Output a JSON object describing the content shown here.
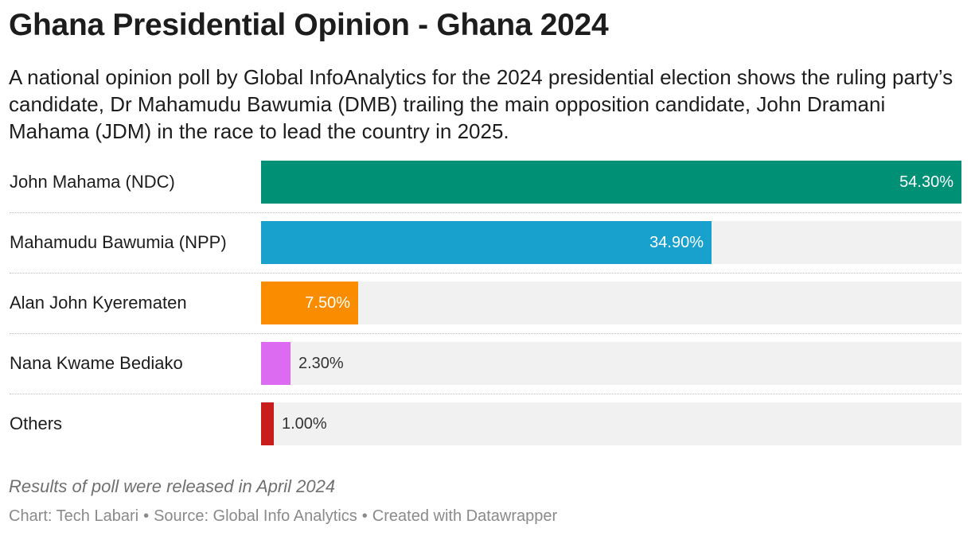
{
  "header": {
    "title": "Ghana Presidential Opinion - Ghana 2024",
    "subtitle": "A national opinion poll by Global InfoAnalytics for the 2024 presidential election shows the ruling party’s candidate, Dr Mahamudu Bawumia (DMB) trailing the main opposition candidate, John Dramani Mahama (JDM) in the race to lead the country in 2025."
  },
  "chart_data": {
    "type": "bar",
    "orientation": "horizontal",
    "title": "Ghana Presidential Opinion - Ghana 2024",
    "categories": [
      "John Mahama (NDC)",
      "Mahamudu Bawumia (NPP)",
      "Alan John Kyerematen",
      "Nana Kwame Bediako",
      "Others"
    ],
    "values": [
      54.3,
      34.9,
      7.5,
      2.3,
      1.0
    ],
    "value_labels": [
      "54.30%",
      "34.90%",
      "7.50%",
      "2.30%",
      "1.00%"
    ],
    "colors": [
      "#009075",
      "#18a1cd",
      "#fa8c00",
      "#dd6bf2",
      "#c71e1d"
    ],
    "xlim": [
      0,
      54.3
    ],
    "xlabel": "",
    "ylabel": "",
    "unit": "%"
  },
  "notes": "Results of poll were released in April 2024",
  "footer": {
    "chart_credit": "Chart: Tech Labari",
    "source": "Source: Global Info Analytics",
    "created_with": "Created with Datawrapper",
    "separator": "•"
  }
}
